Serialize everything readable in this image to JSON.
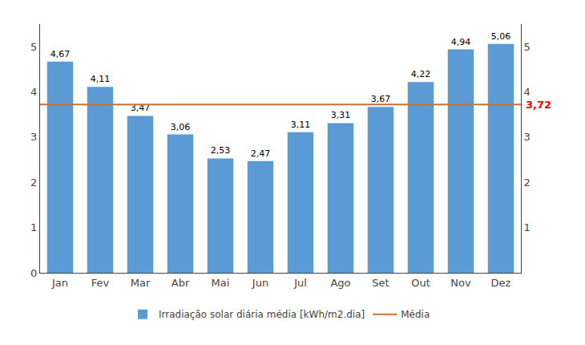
{
  "chart_data": {
    "type": "bar",
    "categories": [
      "Jan",
      "Fev",
      "Mar",
      "Abr",
      "Mai",
      "Jun",
      "Jul",
      "Ago",
      "Set",
      "Out",
      "Nov",
      "Dez"
    ],
    "series": [
      {
        "name": "Irradiação solar diária média [kWh/m2.dia]",
        "color": "#5B9BD5",
        "values": [
          4.67,
          4.11,
          3.47,
          3.06,
          2.53,
          2.47,
          3.11,
          3.31,
          3.67,
          4.22,
          4.94,
          5.06
        ],
        "value_labels": [
          "4,67",
          "4,11",
          "3,47",
          "3,06",
          "2,53",
          "2,47",
          "3,11",
          "3,31",
          "3,67",
          "4,22",
          "4,94",
          "5,06"
        ]
      }
    ],
    "mean_line": {
      "name": "Média",
      "value": 3.72,
      "color": "#C87137"
    },
    "annotations": [
      {
        "text": "3,72",
        "y": 3.72,
        "axis": "y2",
        "color": "#FF0000"
      }
    ],
    "ylim": [
      0,
      5.5
    ],
    "yticks": [
      0,
      1,
      2,
      3,
      4,
      5
    ],
    "y2lim": [
      0,
      5.5
    ],
    "y2ticks": [
      1,
      2,
      3,
      4,
      5
    ],
    "data_labels": true,
    "grid": false,
    "legend": "bottom"
  }
}
